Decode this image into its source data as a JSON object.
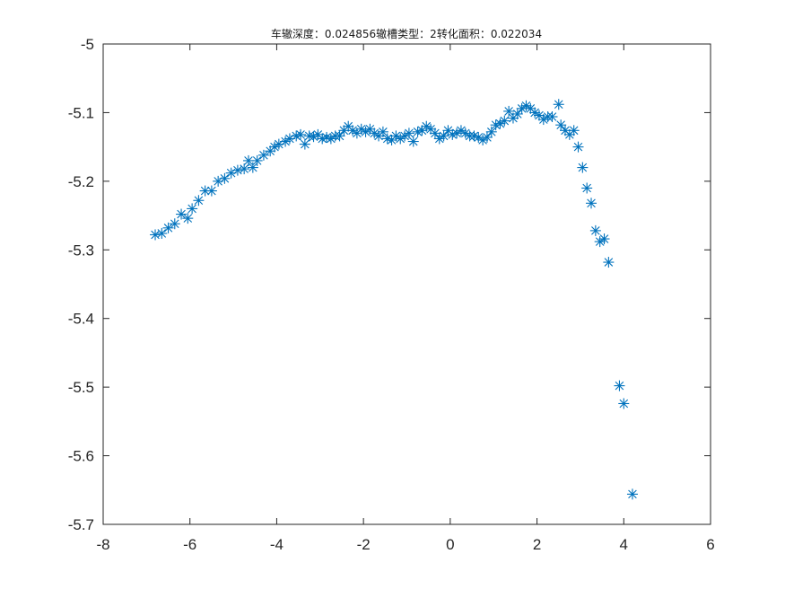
{
  "chart_data": {
    "type": "scatter",
    "title": "车辙深度：0.024856辙槽类型：2转化面积：0.022034",
    "xlabel": "",
    "ylabel": "",
    "xlim": [
      -8,
      6
    ],
    "ylim": [
      -5.7,
      -5
    ],
    "xticks": [
      -8,
      -6,
      -4,
      -2,
      0,
      2,
      4,
      6
    ],
    "yticks": [
      -5,
      -5.1,
      -5.2,
      -5.3,
      -5.4,
      -5.5,
      -5.6,
      -5.7
    ],
    "xtick_labels": [
      "-8",
      "-6",
      "-4",
      "-2",
      "0",
      "2",
      "4",
      "6"
    ],
    "ytick_labels": [
      "-5",
      "-5.1",
      "-5.2",
      "-5.3",
      "-5.4",
      "-5.5",
      "-5.6",
      "-5.7"
    ],
    "grid": false,
    "marker": "asterisk",
    "marker_color": "#0072bd",
    "axis_color": "#262626",
    "series": [
      {
        "points": [
          [
            -6.8,
            -5.278
          ],
          [
            -6.65,
            -5.276
          ],
          [
            -6.5,
            -5.268
          ],
          [
            -6.35,
            -5.262
          ],
          [
            -6.2,
            -5.248
          ],
          [
            -6.05,
            -5.254
          ],
          [
            -5.95,
            -5.24
          ],
          [
            -5.8,
            -5.228
          ],
          [
            -5.65,
            -5.214
          ],
          [
            -5.5,
            -5.214
          ],
          [
            -5.35,
            -5.2
          ],
          [
            -5.2,
            -5.196
          ],
          [
            -5.05,
            -5.188
          ],
          [
            -4.9,
            -5.184
          ],
          [
            -4.75,
            -5.182
          ],
          [
            -4.65,
            -5.17
          ],
          [
            -4.55,
            -5.18
          ],
          [
            -4.45,
            -5.17
          ],
          [
            -4.3,
            -5.162
          ],
          [
            -4.15,
            -5.156
          ],
          [
            -4.05,
            -5.15
          ],
          [
            -3.95,
            -5.146
          ],
          [
            -3.8,
            -5.142
          ],
          [
            -3.7,
            -5.138
          ],
          [
            -3.55,
            -5.134
          ],
          [
            -3.45,
            -5.132
          ],
          [
            -3.35,
            -5.146
          ],
          [
            -3.25,
            -5.134
          ],
          [
            -3.15,
            -5.135
          ],
          [
            -3.05,
            -5.132
          ],
          [
            -2.95,
            -5.138
          ],
          [
            -2.85,
            -5.136
          ],
          [
            -2.75,
            -5.138
          ],
          [
            -2.65,
            -5.134
          ],
          [
            -2.55,
            -5.134
          ],
          [
            -2.45,
            -5.126
          ],
          [
            -2.35,
            -5.12
          ],
          [
            -2.25,
            -5.126
          ],
          [
            -2.15,
            -5.13
          ],
          [
            -2.05,
            -5.124
          ],
          [
            -1.95,
            -5.128
          ],
          [
            -1.85,
            -5.124
          ],
          [
            -1.75,
            -5.13
          ],
          [
            -1.65,
            -5.134
          ],
          [
            -1.55,
            -5.128
          ],
          [
            -1.45,
            -5.138
          ],
          [
            -1.35,
            -5.14
          ],
          [
            -1.25,
            -5.134
          ],
          [
            -1.15,
            -5.138
          ],
          [
            -1.05,
            -5.134
          ],
          [
            -0.95,
            -5.13
          ],
          [
            -0.85,
            -5.142
          ],
          [
            -0.75,
            -5.128
          ],
          [
            -0.65,
            -5.126
          ],
          [
            -0.55,
            -5.12
          ],
          [
            -0.45,
            -5.124
          ],
          [
            -0.35,
            -5.13
          ],
          [
            -0.25,
            -5.138
          ],
          [
            -0.15,
            -5.134
          ],
          [
            -0.05,
            -5.126
          ],
          [
            0.05,
            -5.132
          ],
          [
            0.15,
            -5.13
          ],
          [
            0.25,
            -5.126
          ],
          [
            0.35,
            -5.13
          ],
          [
            0.45,
            -5.134
          ],
          [
            0.55,
            -5.134
          ],
          [
            0.65,
            -5.136
          ],
          [
            0.75,
            -5.14
          ],
          [
            0.85,
            -5.136
          ],
          [
            0.95,
            -5.128
          ],
          [
            1.05,
            -5.118
          ],
          [
            1.15,
            -5.116
          ],
          [
            1.25,
            -5.112
          ],
          [
            1.35,
            -5.098
          ],
          [
            1.45,
            -5.108
          ],
          [
            1.55,
            -5.102
          ],
          [
            1.65,
            -5.094
          ],
          [
            1.75,
            -5.09
          ],
          [
            1.85,
            -5.094
          ],
          [
            1.95,
            -5.1
          ],
          [
            2.05,
            -5.104
          ],
          [
            2.15,
            -5.11
          ],
          [
            2.25,
            -5.106
          ],
          [
            2.35,
            -5.106
          ],
          [
            2.5,
            -5.088
          ],
          [
            2.55,
            -5.118
          ],
          [
            2.65,
            -5.126
          ],
          [
            2.75,
            -5.132
          ],
          [
            2.85,
            -5.126
          ],
          [
            2.95,
            -5.15
          ],
          [
            3.05,
            -5.18
          ],
          [
            3.15,
            -5.21
          ],
          [
            3.25,
            -5.232
          ],
          [
            3.35,
            -5.272
          ],
          [
            3.45,
            -5.288
          ],
          [
            3.55,
            -5.284
          ],
          [
            3.65,
            -5.318
          ],
          [
            3.9,
            -5.498
          ],
          [
            4.0,
            -5.524
          ],
          [
            4.2,
            -5.656
          ]
        ]
      }
    ]
  }
}
